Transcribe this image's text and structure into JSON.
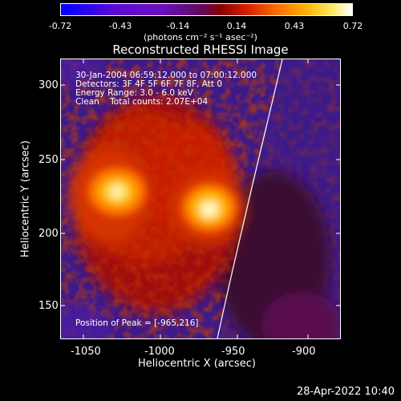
{
  "colorbar": {
    "ticks": [
      "-0.72",
      "-0.43",
      "-0.14",
      "0.14",
      "0.43",
      "0.72"
    ],
    "units": "(photons cm⁻² s⁻¹ asec⁻²)"
  },
  "title": "Reconstructed RHESSI Image",
  "info": {
    "time": "30-Jan-2004 06:59:12.000 to 07:00:12.000",
    "detectors": "Detectors: 3F 4F 5F 6F 7F 8F, Att 0",
    "energy": "Energy Range: 3.0 - 6.0 keV",
    "clean": "Clean    Total counts: 2.07E+04",
    "peak": "Position of Peak = [-965,216]"
  },
  "axes": {
    "xlabel": "Heliocentric X (arcsec)",
    "ylabel": "Heliocentric Y (arcsec)",
    "xticks": [
      "-1050",
      "-1000",
      "-950",
      "-900"
    ],
    "yticks": [
      "300",
      "250",
      "200",
      "150"
    ]
  },
  "timestamp": "28-Apr-2022 10:40",
  "colors": {
    "background": "#000000",
    "limb": "#ffffff"
  }
}
